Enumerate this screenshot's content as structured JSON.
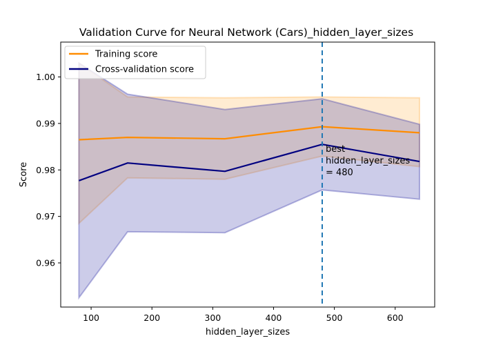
{
  "chart_data": {
    "type": "line",
    "title": "Validation Curve for Neural Network (Cars)_hidden_layer_sizes",
    "xlabel": "hidden_layer_sizes",
    "ylabel": "Score",
    "xlim": [
      50,
      665
    ],
    "ylim": [
      0.9505,
      1.0075
    ],
    "xticks": [
      100,
      200,
      300,
      400,
      500,
      600
    ],
    "xtick_labels": [
      "100",
      "200",
      "300",
      "400",
      "500",
      "600"
    ],
    "yticks": [
      0.96,
      0.97,
      0.98,
      0.99,
      1.0
    ],
    "ytick_labels": [
      "0.96",
      "0.97",
      "0.98",
      "0.99",
      "1.00"
    ],
    "grid": false,
    "legend_position": "top-left",
    "x": [
      80,
      160,
      320,
      480,
      640
    ],
    "series": [
      {
        "name": "Training score",
        "color": "#ff8c00",
        "band_color": "#ffb24c",
        "values": [
          0.9865,
          0.987,
          0.9867,
          0.9893,
          0.988
        ],
        "upper": [
          1.003,
          0.9957,
          0.9955,
          0.9957,
          0.9955
        ],
        "lower": [
          0.9685,
          0.9783,
          0.978,
          0.983,
          0.9807
        ]
      },
      {
        "name": "Cross-validation score",
        "color": "#000080",
        "band_color": "#3333a8",
        "values": [
          0.9777,
          0.9815,
          0.9797,
          0.9855,
          0.9818
        ],
        "upper": [
          1.003,
          0.9963,
          0.993,
          0.9953,
          0.9898
        ],
        "lower": [
          0.9525,
          0.9667,
          0.9665,
          0.9757,
          0.9737
        ]
      }
    ],
    "best_line": {
      "x": 480,
      "color": "#1f77b4",
      "annotation_lines": [
        "best",
        "hidden_layer_sizes",
        "= 480"
      ]
    }
  }
}
